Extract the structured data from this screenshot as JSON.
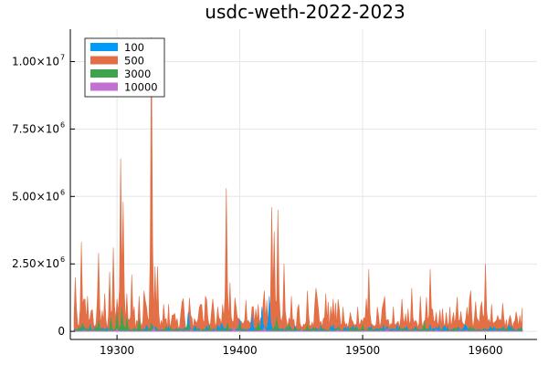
{
  "chart_data": {
    "type": "area",
    "title": "usdc-weth-2022-2023",
    "xlabel": "",
    "ylabel": "",
    "xlim": [
      19262,
      19642
    ],
    "ylim": [
      -300000,
      11200000
    ],
    "x_ticks": [
      {
        "value": 19300,
        "label": "19300"
      },
      {
        "value": 19400,
        "label": "19400"
      },
      {
        "value": 19500,
        "label": "19500"
      },
      {
        "value": 19600,
        "label": "19600"
      }
    ],
    "y_ticks": [
      {
        "value": 0,
        "mantissa": "0",
        "exponent": ""
      },
      {
        "value": 2500000,
        "mantissa": "2.50×10",
        "exponent": "6"
      },
      {
        "value": 5000000,
        "mantissa": "5.00×10",
        "exponent": "6"
      },
      {
        "value": 7500000,
        "mantissa": "7.50×10",
        "exponent": "6"
      },
      {
        "value": 10000000,
        "mantissa": "1.00×10",
        "exponent": "7"
      }
    ],
    "grid": true,
    "legend_position": "top-left",
    "x_range": [
      19265,
      19630
    ],
    "series": [
      {
        "name": "100",
        "color": "#009af9",
        "peaks": [
          [
            19300,
            150000
          ],
          [
            19342,
            200000
          ],
          [
            19358,
            700000
          ],
          [
            19385,
            300000
          ],
          [
            19400,
            450000
          ],
          [
            19410,
            600000
          ],
          [
            19418,
            900000
          ],
          [
            19424,
            1300000
          ],
          [
            19430,
            400000
          ],
          [
            19445,
            200000
          ],
          [
            19505,
            150000
          ],
          [
            19560,
            150000
          ]
        ],
        "baseline": 60000
      },
      {
        "name": "500",
        "color": "#e26f46",
        "peaks": [
          [
            19266,
            2000000
          ],
          [
            19271,
            3300000
          ],
          [
            19273,
            1200000
          ],
          [
            19276,
            1300000
          ],
          [
            19280,
            800000
          ],
          [
            19285,
            2900000
          ],
          [
            19290,
            1400000
          ],
          [
            19294,
            2200000
          ],
          [
            19297,
            3100000
          ],
          [
            19300,
            1200000
          ],
          [
            19303,
            6400000
          ],
          [
            19305,
            4800000
          ],
          [
            19308,
            1400000
          ],
          [
            19312,
            2100000
          ],
          [
            19318,
            1300000
          ],
          [
            19322,
            1500000
          ],
          [
            19328,
            10900000
          ],
          [
            19331,
            2400000
          ],
          [
            19333,
            2400000
          ],
          [
            19338,
            1000000
          ],
          [
            19345,
            600000
          ],
          [
            19352,
            700000
          ],
          [
            19360,
            600000
          ],
          [
            19368,
            1000000
          ],
          [
            19372,
            1300000
          ],
          [
            19378,
            1200000
          ],
          [
            19382,
            900000
          ],
          [
            19386,
            1000000
          ],
          [
            19389,
            5300000
          ],
          [
            19392,
            1800000
          ],
          [
            19396,
            1100000
          ],
          [
            19405,
            1100000
          ],
          [
            19410,
            900000
          ],
          [
            19415,
            1000000
          ],
          [
            19420,
            1500000
          ],
          [
            19426,
            4600000
          ],
          [
            19428,
            3700000
          ],
          [
            19431,
            4500000
          ],
          [
            19436,
            2500000
          ],
          [
            19442,
            1300000
          ],
          [
            19448,
            1000000
          ],
          [
            19455,
            1500000
          ],
          [
            19462,
            1600000
          ],
          [
            19470,
            1400000
          ],
          [
            19476,
            1200000
          ],
          [
            19484,
            900000
          ],
          [
            19490,
            700000
          ],
          [
            19496,
            900000
          ],
          [
            19505,
            2300000
          ],
          [
            19512,
            900000
          ],
          [
            19518,
            1300000
          ],
          [
            19525,
            900000
          ],
          [
            19532,
            1200000
          ],
          [
            19540,
            1600000
          ],
          [
            19547,
            1300000
          ],
          [
            19555,
            2300000
          ],
          [
            19560,
            700000
          ],
          [
            19568,
            700000
          ],
          [
            19574,
            700000
          ],
          [
            19580,
            600000
          ],
          [
            19585,
            800000
          ],
          [
            19588,
            1500000
          ],
          [
            19592,
            1100000
          ],
          [
            19596,
            900000
          ],
          [
            19600,
            2500000
          ],
          [
            19605,
            1000000
          ],
          [
            19610,
            600000
          ],
          [
            19615,
            500000
          ],
          [
            19620,
            600000
          ],
          [
            19625,
            500000
          ],
          [
            19628,
            600000
          ]
        ],
        "baseline": 300000
      },
      {
        "name": "3000",
        "color": "#3da44d",
        "peaks": [
          [
            19272,
            300000
          ],
          [
            19285,
            400000
          ],
          [
            19295,
            500000
          ],
          [
            19300,
            700000
          ],
          [
            19304,
            900000
          ],
          [
            19308,
            500000
          ],
          [
            19318,
            450000
          ],
          [
            19328,
            300000
          ],
          [
            19340,
            200000
          ],
          [
            19358,
            300000
          ],
          [
            19375,
            250000
          ],
          [
            19390,
            300000
          ],
          [
            19400,
            250000
          ],
          [
            19415,
            350000
          ],
          [
            19430,
            500000
          ],
          [
            19440,
            300000
          ],
          [
            19455,
            250000
          ],
          [
            19480,
            200000
          ],
          [
            19500,
            250000
          ],
          [
            19530,
            200000
          ],
          [
            19550,
            400000
          ],
          [
            19575,
            150000
          ],
          [
            19590,
            150000
          ],
          [
            19610,
            100000
          ]
        ],
        "baseline": 40000
      },
      {
        "name": "10000",
        "color": "#c271d2",
        "peaks": [
          [
            19300,
            100000
          ],
          [
            19330,
            150000
          ],
          [
            19360,
            80000
          ],
          [
            19395,
            120000
          ],
          [
            19420,
            150000
          ],
          [
            19450,
            80000
          ],
          [
            19480,
            60000
          ],
          [
            19520,
            90000
          ],
          [
            19560,
            70000
          ],
          [
            19600,
            40000
          ]
        ],
        "baseline": 10000
      }
    ]
  }
}
